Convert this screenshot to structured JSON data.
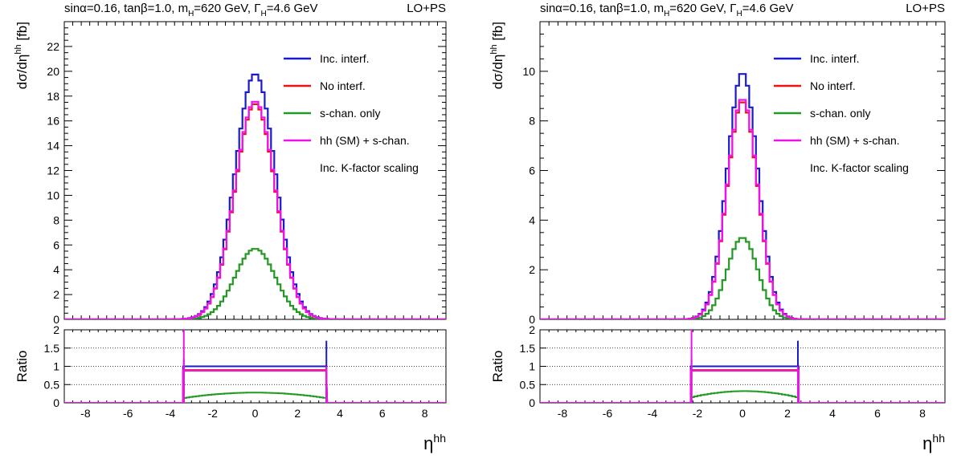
{
  "chart_data": [
    {
      "type": "step-histogram",
      "header": "sinα=0.16, tanβ=1.0, m_H=620 GeV, Γ_H=4.6 GeV",
      "header_parts": {
        "a": "sinα=0.16, tanβ=1.0, m",
        "a_sub": "H",
        "b": "=620 GeV, ",
        "gamma": "Γ",
        "gamma_sub": "H",
        "c": "=4.6 GeV"
      },
      "tag": "LO+PS",
      "ylabel": {
        "main": "dσ/dη",
        "sup": "hh",
        "unit": " [fb]"
      },
      "xlabel": {
        "main": "η",
        "sup": "hh"
      },
      "ratio_ylabel": "Ratio",
      "note": "Inc. K-factor scaling",
      "xlim": [
        -9,
        9
      ],
      "ylim": [
        0,
        24
      ],
      "ratio_ylim": [
        0,
        2
      ],
      "xticks": [
        -8,
        -6,
        -4,
        -2,
        0,
        2,
        4,
        6,
        8
      ],
      "yticks": [
        0,
        2,
        4,
        6,
        8,
        10,
        12,
        14,
        16,
        18,
        20,
        22
      ],
      "ratio_yticks": [
        "0",
        "0.5",
        "1",
        "1.5",
        "2"
      ],
      "ratio_range": [
        -3.4,
        3.4
      ],
      "series": [
        {
          "name": "Inc. interf.",
          "color": "#1a1acc",
          "peak": 19.8,
          "sigma": 0.95,
          "ratio": 1.0
        },
        {
          "name": "No interf.",
          "color": "#ee1111",
          "peak": 17.4,
          "sigma": 0.95,
          "ratio": 0.9
        },
        {
          "name": "s-chan. only",
          "color": "#229922",
          "peak": 5.7,
          "sigma": 0.95,
          "ratio": 0.28
        },
        {
          "name": "hh (SM) + s-chan.",
          "color": "#ee11ee",
          "peak": 17.6,
          "sigma": 0.95,
          "ratio": 0.88
        }
      ]
    },
    {
      "type": "step-histogram",
      "header": "sinα=0.16, tanβ=1.0, m_H=620 GeV, Γ_H=4.6 GeV",
      "header_parts": {
        "a": "sinα=0.16, tanβ=1.0, m",
        "a_sub": "H",
        "b": "=620 GeV, ",
        "gamma": "Γ",
        "gamma_sub": "H",
        "c": "=4.6 GeV"
      },
      "tag": "LO+PS",
      "ylabel": {
        "main": "dσ/dη",
        "sup": "hh",
        "unit": " [fb]"
      },
      "xlabel": {
        "main": "η",
        "sup": "hh"
      },
      "ratio_ylabel": "Ratio",
      "note": "Inc. K-factor scaling",
      "xlim": [
        -9,
        9
      ],
      "ylim": [
        0,
        12
      ],
      "ratio_ylim": [
        0,
        2
      ],
      "xticks": [
        -8,
        -6,
        -4,
        -2,
        0,
        2,
        4,
        6,
        8
      ],
      "yticks": [
        0,
        2,
        4,
        6,
        8,
        10
      ],
      "ratio_yticks": [
        "0",
        "0.5",
        "1",
        "1.5",
        "2"
      ],
      "ratio_range": [
        -2.3,
        2.5
      ],
      "series": [
        {
          "name": "Inc. interf.",
          "color": "#1a1acc",
          "peak": 9.95,
          "sigma": 0.68,
          "ratio": 1.0
        },
        {
          "name": "No interf.",
          "color": "#ee1111",
          "peak": 8.8,
          "sigma": 0.68,
          "ratio": 0.9
        },
        {
          "name": "s-chan. only",
          "color": "#229922",
          "peak": 3.3,
          "sigma": 0.68,
          "ratio": 0.32
        },
        {
          "name": "hh (SM) + s-chan.",
          "color": "#ee11ee",
          "peak": 8.9,
          "sigma": 0.68,
          "ratio": 0.88
        }
      ]
    }
  ]
}
